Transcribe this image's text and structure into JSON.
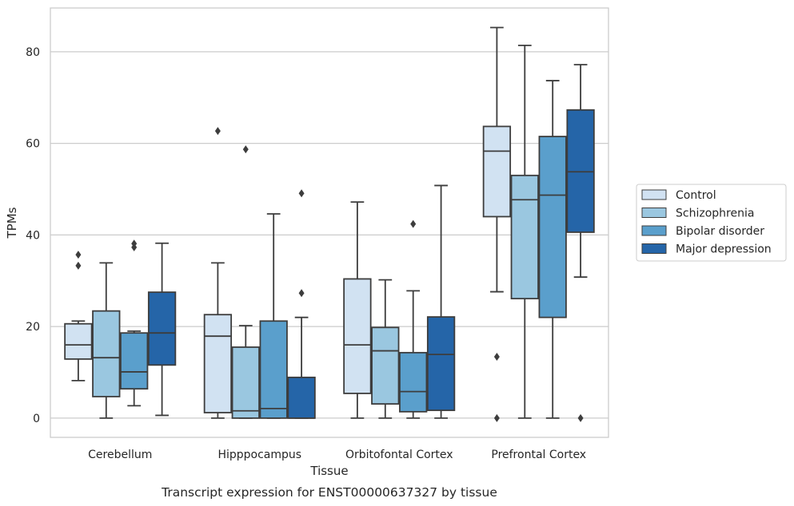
{
  "chart_data": {
    "type": "box",
    "title": "",
    "caption": "Transcript expression for ENST00000637327 by tissue",
    "xlabel": "Tissue",
    "ylabel": "TPMs",
    "ylim": [
      -4,
      90
    ],
    "yticks": [
      0,
      20,
      40,
      60,
      80
    ],
    "grid": "horizontal",
    "legend_position": "right, outside plot",
    "categories": [
      "Cerebellum",
      "Hipppocampus",
      "Orbitofontal Cortex",
      "Prefrontal Cortex"
    ],
    "series": [
      {
        "name": "Control",
        "color": "#d1e2f2",
        "boxes": [
          {
            "whislo": 8.2,
            "q1": 12.9,
            "med": 16.0,
            "q3": 20.6,
            "whishi": 21.2,
            "fliers": [
              33.3,
              35.7
            ]
          },
          {
            "whislo": 0.0,
            "q1": 1.2,
            "med": 17.9,
            "q3": 22.6,
            "whishi": 33.9,
            "fliers": [
              62.7
            ]
          },
          {
            "whislo": 0.0,
            "q1": 5.4,
            "med": 16.0,
            "q3": 30.4,
            "whishi": 47.2,
            "fliers": []
          },
          {
            "whislo": 27.6,
            "q1": 44.0,
            "med": 58.3,
            "q3": 63.7,
            "whishi": 85.3,
            "fliers": [
              13.4,
              0.0
            ]
          }
        ]
      },
      {
        "name": "Schizophrenia",
        "color": "#9ac7e0",
        "boxes": [
          {
            "whislo": 0.0,
            "q1": 4.7,
            "med": 13.2,
            "q3": 23.4,
            "whishi": 33.9,
            "fliers": []
          },
          {
            "whislo": 0.0,
            "q1": 0.0,
            "med": 1.6,
            "q3": 15.5,
            "whishi": 20.2,
            "fliers": [
              58.7
            ]
          },
          {
            "whislo": 0.0,
            "q1": 3.1,
            "med": 14.7,
            "q3": 19.8,
            "whishi": 30.2,
            "fliers": []
          },
          {
            "whislo": 0.0,
            "q1": 26.1,
            "med": 47.7,
            "q3": 53.0,
            "whishi": 81.4,
            "fliers": []
          }
        ]
      },
      {
        "name": "Bipolar disorder",
        "color": "#5a9fcc",
        "boxes": [
          {
            "whislo": 2.7,
            "q1": 6.4,
            "med": 10.1,
            "q3": 18.6,
            "whishi": 19.0,
            "fliers": [
              37.3,
              38.1
            ]
          },
          {
            "whislo": 0.0,
            "q1": 0.0,
            "med": 2.1,
            "q3": 21.2,
            "whishi": 44.6,
            "fliers": []
          },
          {
            "whislo": 0.0,
            "q1": 1.4,
            "med": 5.8,
            "q3": 14.3,
            "whishi": 27.8,
            "fliers": [
              42.4
            ]
          },
          {
            "whislo": 0.0,
            "q1": 22.0,
            "med": 48.7,
            "q3": 61.5,
            "whishi": 73.7,
            "fliers": []
          }
        ]
      },
      {
        "name": "Major depression",
        "color": "#2565a8",
        "boxes": [
          {
            "whislo": 0.6,
            "q1": 11.6,
            "med": 18.6,
            "q3": 27.5,
            "whishi": 38.2,
            "fliers": []
          },
          {
            "whislo": 0.0,
            "q1": 0.0,
            "med": 0.0,
            "q3": 8.9,
            "whishi": 22.0,
            "fliers": [
              27.3,
              49.1
            ]
          },
          {
            "whislo": 0.0,
            "q1": 1.7,
            "med": 13.9,
            "q3": 22.1,
            "whishi": 50.8,
            "fliers": []
          },
          {
            "whislo": 30.8,
            "q1": 40.6,
            "med": 53.8,
            "q3": 67.3,
            "whishi": 77.2,
            "fliers": [
              0.0
            ]
          }
        ]
      }
    ]
  }
}
